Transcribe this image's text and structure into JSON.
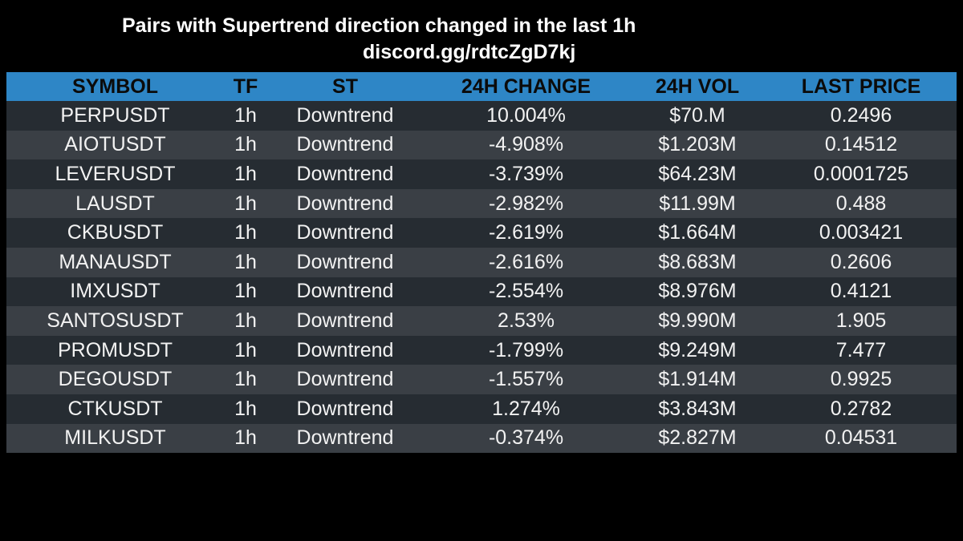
{
  "header": {
    "title": "Pairs with Supertrend direction changed in the last 1h",
    "subtitle": "discord.gg/rdtcZgD7kj"
  },
  "colors": {
    "background": "#000000",
    "header_row": "#2e86c6",
    "row_dark": "#262c32",
    "row_light": "#3a3f45",
    "text": "#ffffff"
  },
  "table": {
    "columns": [
      "SYMBOL",
      "TF",
      "ST",
      "24H CHANGE",
      "24H VOL",
      "LAST PRICE"
    ],
    "rows": [
      {
        "symbol": "PERPUSDT",
        "tf": "1h",
        "st": "Downtrend",
        "change": "10.004%",
        "vol": "$70.M",
        "price": "0.2496"
      },
      {
        "symbol": "AIOTUSDT",
        "tf": "1h",
        "st": "Downtrend",
        "change": "-4.908%",
        "vol": "$1.203M",
        "price": "0.14512"
      },
      {
        "symbol": "LEVERUSDT",
        "tf": "1h",
        "st": "Downtrend",
        "change": "-3.739%",
        "vol": "$64.23M",
        "price": "0.0001725"
      },
      {
        "symbol": "LAUSDT",
        "tf": "1h",
        "st": "Downtrend",
        "change": "-2.982%",
        "vol": "$11.99M",
        "price": "0.488"
      },
      {
        "symbol": "CKBUSDT",
        "tf": "1h",
        "st": "Downtrend",
        "change": "-2.619%",
        "vol": "$1.664M",
        "price": "0.003421"
      },
      {
        "symbol": "MANAUSDT",
        "tf": "1h",
        "st": "Downtrend",
        "change": "-2.616%",
        "vol": "$8.683M",
        "price": "0.2606"
      },
      {
        "symbol": "IMXUSDT",
        "tf": "1h",
        "st": "Downtrend",
        "change": "-2.554%",
        "vol": "$8.976M",
        "price": "0.4121"
      },
      {
        "symbol": "SANTOSUSDT",
        "tf": "1h",
        "st": "Downtrend",
        "change": "2.53%",
        "vol": "$9.990M",
        "price": "1.905"
      },
      {
        "symbol": "PROMUSDT",
        "tf": "1h",
        "st": "Downtrend",
        "change": "-1.799%",
        "vol": "$9.249M",
        "price": "7.477"
      },
      {
        "symbol": "DEGOUSDT",
        "tf": "1h",
        "st": "Downtrend",
        "change": "-1.557%",
        "vol": "$1.914M",
        "price": "0.9925"
      },
      {
        "symbol": "CTKUSDT",
        "tf": "1h",
        "st": "Downtrend",
        "change": "1.274%",
        "vol": "$3.843M",
        "price": "0.2782"
      },
      {
        "symbol": "MILKUSDT",
        "tf": "1h",
        "st": "Downtrend",
        "change": "-0.374%",
        "vol": "$2.827M",
        "price": "0.04531"
      }
    ]
  }
}
